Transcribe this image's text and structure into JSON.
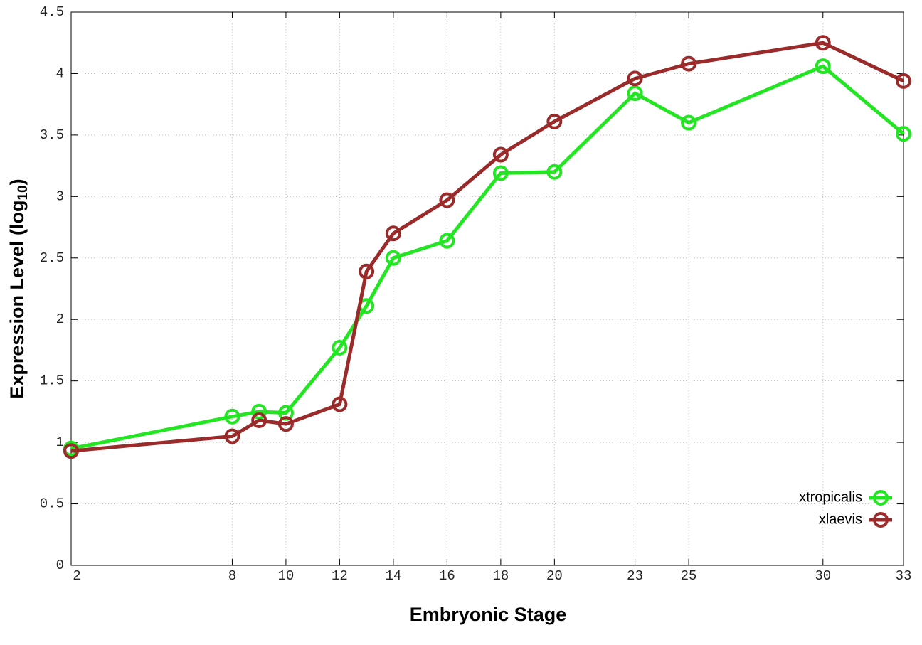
{
  "chart_data": {
    "type": "line",
    "xlabel": "Embryonic Stage",
    "ylabel_parts": [
      "Expression Level (log",
      "10",
      ")"
    ],
    "x": [
      2,
      8,
      9,
      10,
      12,
      13,
      14,
      16,
      18,
      20,
      23,
      25,
      30,
      33
    ],
    "series": [
      {
        "name": "xtropicalis",
        "color": "#22e622",
        "values": [
          0.95,
          1.21,
          1.25,
          1.24,
          1.77,
          2.11,
          2.5,
          2.64,
          3.19,
          3.2,
          3.84,
          3.6,
          4.06,
          3.51
        ]
      },
      {
        "name": "xlaevis",
        "color": "#9b2b2b",
        "values": [
          0.93,
          1.05,
          1.18,
          1.15,
          1.31,
          2.39,
          2.7,
          2.97,
          3.34,
          3.61,
          3.96,
          4.08,
          4.25,
          3.94
        ]
      }
    ],
    "xlim": [
      2,
      33
    ],
    "xticks": [
      2,
      8,
      10,
      12,
      14,
      16,
      18,
      20,
      23,
      25,
      30,
      33
    ],
    "ylim": [
      0,
      4.5
    ],
    "yticks": [
      0,
      0.5,
      1,
      1.5,
      2,
      2.5,
      3,
      3.5,
      4,
      4.5
    ],
    "grid": true,
    "legend": "bottom-right"
  }
}
